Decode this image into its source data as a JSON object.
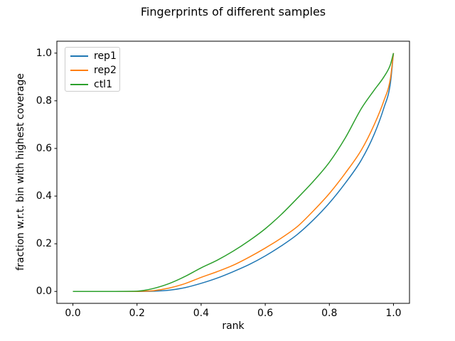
{
  "figure": {
    "background": "#ffffff",
    "text_color": "#000000",
    "spine_color": "#000000"
  },
  "chart_data": {
    "type": "line",
    "title": "Fingerprints of different samples",
    "xlabel": "rank",
    "ylabel": "fraction w.r.t. bin with highest coverage",
    "xlim": [
      -0.05,
      1.05
    ],
    "ylim": [
      -0.05,
      1.05
    ],
    "grid": false,
    "legend_position": "upper left",
    "x_ticks": [
      0.0,
      0.2,
      0.4,
      0.6,
      0.8,
      1.0
    ],
    "x_tick_labels": [
      "0.0",
      "0.2",
      "0.4",
      "0.6",
      "0.8",
      "1.0"
    ],
    "y_ticks": [
      0.0,
      0.2,
      0.4,
      0.6,
      0.8,
      1.0
    ],
    "y_tick_labels": [
      "0.0",
      "0.2",
      "0.4",
      "0.6",
      "0.8",
      "1.0"
    ],
    "series": [
      {
        "name": "rep1",
        "color": "#1f77b4",
        "points": [
          [
            0,
            0
          ],
          [
            0.1,
            0
          ],
          [
            0.2,
            0
          ],
          [
            0.25,
            0.001
          ],
          [
            0.3,
            0.005
          ],
          [
            0.35,
            0.016
          ],
          [
            0.4,
            0.034
          ],
          [
            0.45,
            0.056
          ],
          [
            0.5,
            0.083
          ],
          [
            0.55,
            0.113
          ],
          [
            0.6,
            0.149
          ],
          [
            0.65,
            0.191
          ],
          [
            0.7,
            0.239
          ],
          [
            0.75,
            0.3
          ],
          [
            0.8,
            0.371
          ],
          [
            0.85,
            0.455
          ],
          [
            0.9,
            0.552
          ],
          [
            0.94,
            0.66
          ],
          [
            0.97,
            0.77
          ],
          [
            0.99,
            0.87
          ],
          [
            1,
            1
          ]
        ]
      },
      {
        "name": "rep2",
        "color": "#ff7f0e",
        "points": [
          [
            0,
            0
          ],
          [
            0.1,
            0
          ],
          [
            0.2,
            0
          ],
          [
            0.22,
            0.001
          ],
          [
            0.25,
            0.003
          ],
          [
            0.3,
            0.014
          ],
          [
            0.35,
            0.033
          ],
          [
            0.4,
            0.059
          ],
          [
            0.45,
            0.083
          ],
          [
            0.5,
            0.11
          ],
          [
            0.55,
            0.144
          ],
          [
            0.6,
            0.182
          ],
          [
            0.65,
            0.224
          ],
          [
            0.7,
            0.272
          ],
          [
            0.75,
            0.338
          ],
          [
            0.8,
            0.411
          ],
          [
            0.85,
            0.497
          ],
          [
            0.9,
            0.594
          ],
          [
            0.94,
            0.7
          ],
          [
            0.97,
            0.8
          ],
          [
            0.99,
            0.89
          ],
          [
            1,
            1
          ]
        ]
      },
      {
        "name": "ctl1",
        "color": "#2ca02c",
        "points": [
          [
            0,
            0
          ],
          [
            0.1,
            0
          ],
          [
            0.2,
            0.001
          ],
          [
            0.22,
            0.004
          ],
          [
            0.25,
            0.012
          ],
          [
            0.3,
            0.033
          ],
          [
            0.35,
            0.063
          ],
          [
            0.4,
            0.099
          ],
          [
            0.45,
            0.131
          ],
          [
            0.5,
            0.169
          ],
          [
            0.55,
            0.213
          ],
          [
            0.6,
            0.263
          ],
          [
            0.65,
            0.323
          ],
          [
            0.7,
            0.391
          ],
          [
            0.75,
            0.462
          ],
          [
            0.8,
            0.542
          ],
          [
            0.85,
            0.645
          ],
          [
            0.9,
            0.768
          ],
          [
            0.94,
            0.845
          ],
          [
            0.97,
            0.9
          ],
          [
            0.99,
            0.95
          ],
          [
            1,
            1
          ]
        ]
      }
    ]
  }
}
